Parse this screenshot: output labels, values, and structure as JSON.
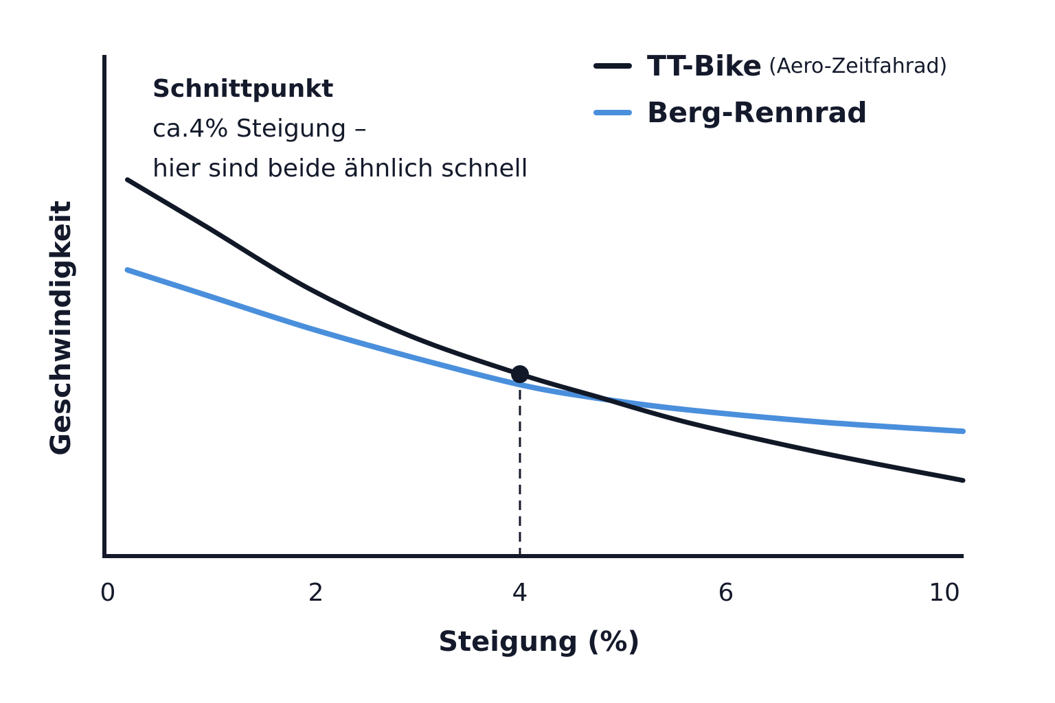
{
  "chart_data": {
    "type": "line",
    "title": "",
    "xlabel": "Steigung (%)",
    "ylabel": "Geschwindigkeit",
    "x_ticks": [
      "0",
      "2",
      "4",
      "6",
      "10"
    ],
    "ylim": [
      0,
      100
    ],
    "grid": false,
    "legend_position": "top-right",
    "series": [
      {
        "name": "TT-Bike",
        "name_suffix": "(Aero-Zeitfahrad)",
        "color": "#111827",
        "x": [
          0.19,
          0.95,
          1.95,
          2.95,
          4.0,
          4.75,
          5.62,
          6.95,
          8.3
        ],
        "y": [
          75.1,
          65.8,
          53.4,
          43.8,
          36.3,
          31.8,
          26.7,
          20.5,
          15.1
        ]
      },
      {
        "name": "Berg-Rennrad",
        "color": "#4a8fdc",
        "x": [
          0.19,
          0.95,
          1.95,
          2.95,
          4.0,
          4.75,
          5.62,
          6.95,
          8.3
        ],
        "y": [
          57.1,
          52.1,
          45.5,
          39.7,
          34.2,
          31.5,
          29.2,
          26.7,
          24.9
        ]
      }
    ],
    "marker": {
      "x": 4.0,
      "y": 36.3
    },
    "annotation": {
      "lines": [
        "Schnittpunkt",
        "ca.4% Steigung –",
        "hier sind beide ähnlich schnell"
      ]
    }
  }
}
